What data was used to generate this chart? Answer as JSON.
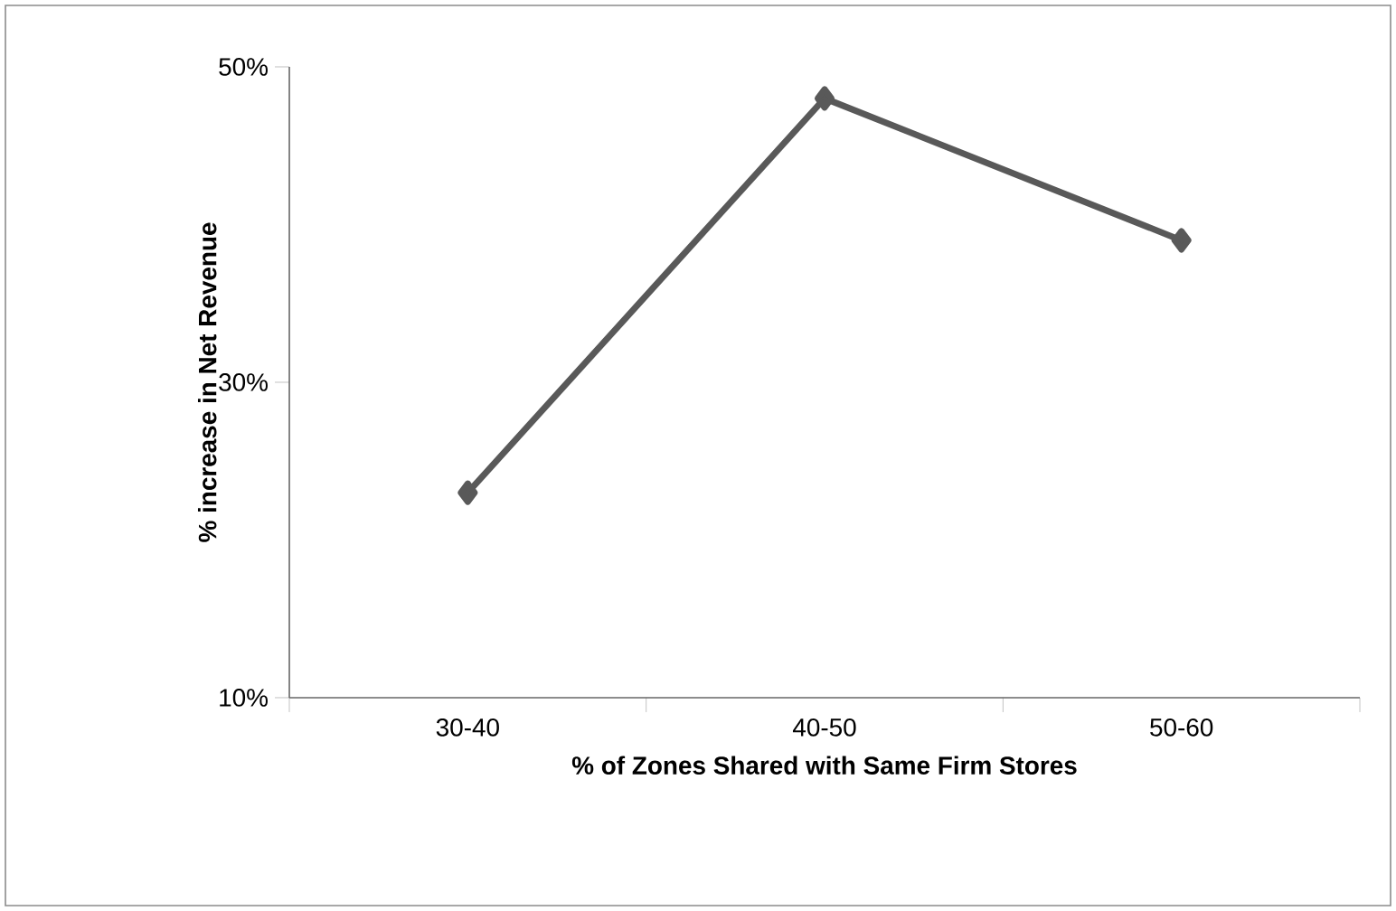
{
  "chart_data": {
    "type": "line",
    "xlabel": "% of Zones Shared with Same Firm Stores",
    "ylabel": "% increase in Net Revenue",
    "categories": [
      "30-40",
      "40-50",
      "50-60"
    ],
    "series": [
      {
        "color": "#595959",
        "values": [
          23,
          48,
          39
        ]
      }
    ],
    "ylim": [
      10,
      50
    ],
    "yticks": [
      {
        "value": 10,
        "label": "10%"
      },
      {
        "value": 30,
        "label": "30%"
      },
      {
        "value": 50,
        "label": "50%"
      }
    ],
    "marker": "diamond",
    "line_style": "solid"
  }
}
